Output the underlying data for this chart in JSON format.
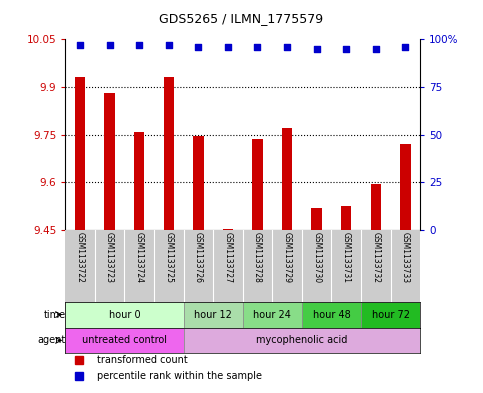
{
  "title": "GDS5265 / ILMN_1775579",
  "samples": [
    "GSM1133722",
    "GSM1133723",
    "GSM1133724",
    "GSM1133725",
    "GSM1133726",
    "GSM1133727",
    "GSM1133728",
    "GSM1133729",
    "GSM1133730",
    "GSM1133731",
    "GSM1133732",
    "GSM1133733"
  ],
  "bar_values": [
    9.93,
    9.88,
    9.76,
    9.93,
    9.745,
    9.455,
    9.735,
    9.77,
    9.52,
    9.525,
    9.595,
    9.72
  ],
  "percentile_values": [
    97,
    97,
    97,
    97,
    96,
    96,
    96,
    96,
    95,
    95,
    95,
    96
  ],
  "bar_color": "#cc0000",
  "percentile_color": "#0000cc",
  "bar_bottom": 9.45,
  "ylim_left": [
    9.45,
    10.05
  ],
  "ylim_right": [
    0,
    100
  ],
  "yticks_left": [
    9.45,
    9.6,
    9.75,
    9.9,
    10.05
  ],
  "ytick_labels_left": [
    "9.45",
    "9.6",
    "9.75",
    "9.9",
    "10.05"
  ],
  "yticks_right": [
    0,
    25,
    50,
    75,
    100
  ],
  "ytick_labels_right": [
    "0",
    "25",
    "50",
    "75",
    "100%"
  ],
  "hlines": [
    9.9,
    9.75,
    9.6
  ],
  "time_groups": [
    {
      "label": "hour 0",
      "start": 0,
      "end": 4,
      "color": "#ccffcc"
    },
    {
      "label": "hour 12",
      "start": 4,
      "end": 6,
      "color": "#aaddaa"
    },
    {
      "label": "hour 24",
      "start": 6,
      "end": 8,
      "color": "#88dd88"
    },
    {
      "label": "hour 48",
      "start": 8,
      "end": 10,
      "color": "#44cc44"
    },
    {
      "label": "hour 72",
      "start": 10,
      "end": 12,
      "color": "#22bb22"
    }
  ],
  "agent_groups": [
    {
      "label": "untreated control",
      "start": 0,
      "end": 4,
      "color": "#ee66ee"
    },
    {
      "label": "mycophenolic acid",
      "start": 4,
      "end": 12,
      "color": "#ddaadd"
    }
  ],
  "legend_items": [
    {
      "label": "transformed count",
      "color": "#cc0000",
      "marker": "s"
    },
    {
      "label": "percentile rank within the sample",
      "color": "#0000cc",
      "marker": "s"
    }
  ],
  "left_tick_color": "#cc0000",
  "right_tick_color": "#0000cc",
  "bar_width": 0.35,
  "sample_area_bg": "#cccccc",
  "plot_bg": "#ffffff"
}
